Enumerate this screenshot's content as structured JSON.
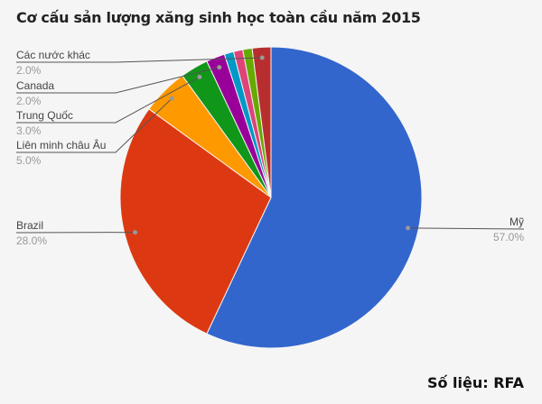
{
  "chart_data": {
    "type": "pie",
    "title": "Cơ cấu sản lượng xăng sinh học toàn cầu năm 2015",
    "source": "Số liệu: RFA",
    "slices": [
      {
        "name": "Mỹ",
        "value": 57.0,
        "label": "57.0%",
        "color": "#3366cc"
      },
      {
        "name": "Brazil",
        "value": 28.0,
        "label": "28.0%",
        "color": "#dc3912"
      },
      {
        "name": "Liên minh châu Âu",
        "value": 5.0,
        "label": "5.0%",
        "color": "#ff9900"
      },
      {
        "name": "Trung Quốc",
        "value": 3.0,
        "label": "3.0%",
        "color": "#109618"
      },
      {
        "name": "Canada",
        "value": 2.0,
        "label": "2.0%",
        "color": "#990099"
      },
      {
        "name": "",
        "value": 1.0,
        "label": "",
        "color": "#0099c6"
      },
      {
        "name": "",
        "value": 1.0,
        "label": "",
        "color": "#dd4477"
      },
      {
        "name": "",
        "value": 1.0,
        "label": "",
        "color": "#66aa00"
      },
      {
        "name": "Các nước khác",
        "value": 2.0,
        "label": "2.0%",
        "color": "#b82e2e"
      }
    ],
    "start_angle": "12 o'clock, clockwise"
  }
}
